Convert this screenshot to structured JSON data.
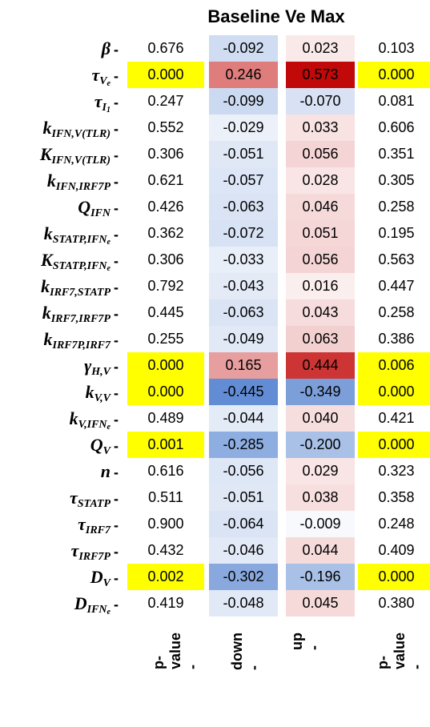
{
  "title": "Baseline Ve Max",
  "chart_data": {
    "type": "heatmap",
    "title": "Baseline Ve Max",
    "columns": [
      "p-value",
      "down",
      "up",
      "p-value"
    ],
    "rows": [
      {
        "label": "β",
        "pval_down": "0.676",
        "down": -0.092,
        "up": 0.023,
        "pval_up": "0.103",
        "hl_down": false,
        "hl_up": false
      },
      {
        "label": "τVe",
        "pval_down": "0.000",
        "down": 0.246,
        "up": 0.573,
        "pval_up": "0.000",
        "hl_down": true,
        "hl_up": true
      },
      {
        "label": "τI1",
        "pval_down": "0.247",
        "down": -0.099,
        "up": -0.07,
        "pval_up": "0.081",
        "hl_down": false,
        "hl_up": false
      },
      {
        "label": "kIFN,V(TLR)",
        "pval_down": "0.552",
        "down": -0.029,
        "up": 0.033,
        "pval_up": "0.606",
        "hl_down": false,
        "hl_up": false
      },
      {
        "label": "KIFN,V(TLR)",
        "pval_down": "0.306",
        "down": -0.051,
        "up": 0.056,
        "pval_up": "0.351",
        "hl_down": false,
        "hl_up": false
      },
      {
        "label": "kIFN,IRF7P",
        "pval_down": "0.621",
        "down": -0.057,
        "up": 0.028,
        "pval_up": "0.305",
        "hl_down": false,
        "hl_up": false
      },
      {
        "label": "QIFN",
        "pval_down": "0.426",
        "down": -0.063,
        "up": 0.046,
        "pval_up": "0.258",
        "hl_down": false,
        "hl_up": false
      },
      {
        "label": "kSTATP,IFNe",
        "pval_down": "0.362",
        "down": -0.072,
        "up": 0.051,
        "pval_up": "0.195",
        "hl_down": false,
        "hl_up": false
      },
      {
        "label": "KSTATP,IFNe",
        "pval_down": "0.306",
        "down": -0.033,
        "up": 0.056,
        "pval_up": "0.563",
        "hl_down": false,
        "hl_up": false
      },
      {
        "label": "kIRF7,STATP",
        "pval_down": "0.792",
        "down": -0.043,
        "up": 0.016,
        "pval_up": "0.447",
        "hl_down": false,
        "hl_up": false
      },
      {
        "label": "kIRF7,IRF7P",
        "pval_down": "0.445",
        "down": -0.063,
        "up": 0.043,
        "pval_up": "0.258",
        "hl_down": false,
        "hl_up": false
      },
      {
        "label": "kIRF7P,IRF7",
        "pval_down": "0.255",
        "down": -0.049,
        "up": 0.063,
        "pval_up": "0.386",
        "hl_down": false,
        "hl_up": false
      },
      {
        "label": "γH,V",
        "pval_down": "0.000",
        "down": 0.165,
        "up": 0.444,
        "pval_up": "0.006",
        "hl_down": true,
        "hl_up": true
      },
      {
        "label": "kV,V",
        "pval_down": "0.000",
        "down": -0.445,
        "up": -0.349,
        "pval_up": "0.000",
        "hl_down": true,
        "hl_up": true
      },
      {
        "label": "kV,IFNe",
        "pval_down": "0.489",
        "down": -0.044,
        "up": 0.04,
        "pval_up": "0.421",
        "hl_down": false,
        "hl_up": false
      },
      {
        "label": "QV",
        "pval_down": "0.001",
        "down": -0.285,
        "up": -0.2,
        "pval_up": "0.000",
        "hl_down": true,
        "hl_up": true
      },
      {
        "label": "n",
        "pval_down": "0.616",
        "down": -0.056,
        "up": 0.029,
        "pval_up": "0.323",
        "hl_down": false,
        "hl_up": false
      },
      {
        "label": "τSTATP",
        "pval_down": "0.511",
        "down": -0.051,
        "up": 0.038,
        "pval_up": "0.358",
        "hl_down": false,
        "hl_up": false
      },
      {
        "label": "τIRF7",
        "pval_down": "0.900",
        "down": -0.064,
        "up": -0.009,
        "pval_up": "0.248",
        "hl_down": false,
        "hl_up": false
      },
      {
        "label": "τIRF7P",
        "pval_down": "0.432",
        "down": -0.046,
        "up": 0.044,
        "pval_up": "0.409",
        "hl_down": false,
        "hl_up": false
      },
      {
        "label": "DV",
        "pval_down": "0.002",
        "down": -0.302,
        "up": -0.196,
        "pval_up": "0.000",
        "hl_down": true,
        "hl_up": true
      },
      {
        "label": "DIFNe",
        "pval_down": "0.419",
        "down": -0.048,
        "up": 0.045,
        "pval_up": "0.380",
        "hl_down": false,
        "hl_up": false
      }
    ],
    "colors": {
      "highlight": "#ffff00",
      "positive": "#c00000",
      "negative": "#3a6fc8",
      "neutral": "#ffffff"
    },
    "value_range": [
      -0.6,
      0.6
    ]
  }
}
